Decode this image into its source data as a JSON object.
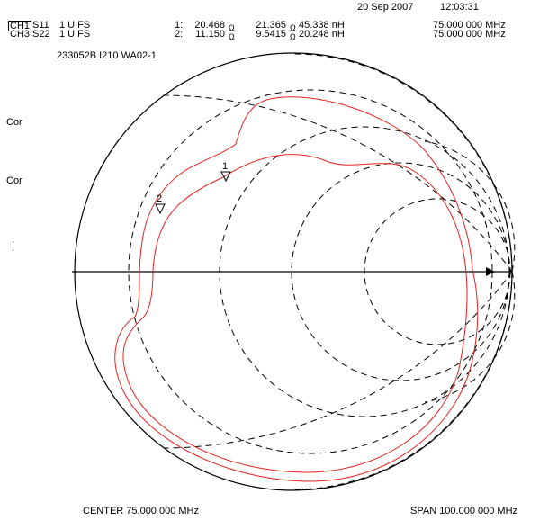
{
  "header": {
    "date": "20 Sep 2007",
    "time": "12:03:31",
    "channels": [
      {
        "channel": "CH1",
        "param": "S11",
        "scale": "1 U FS",
        "marker": "1:",
        "r": "20.468",
        "x": "21.365",
        "ohm": "Ω",
        "l": "45.338 nH",
        "freq": "75.000 000 MHz"
      },
      {
        "channel": "CH3",
        "param": "S22",
        "scale": "1 U FS",
        "marker": "2:",
        "r": "11.150",
        "x": "9.5415",
        "ohm": "Ω",
        "l": "20.248 nH",
        "freq": "75.000 000 MHz"
      }
    ],
    "label": "233052B I210 WA02-1"
  },
  "side": {
    "cor1": "Cor",
    "cor2": "Cor",
    "arrow": "↑\n↓"
  },
  "footer": {
    "center": "CENTER 75.000 000 MHz",
    "span": "SPAN 100.000 000 MHz"
  },
  "markers": {
    "m1": "1",
    "m2": "2"
  },
  "colors": {
    "trace": "#e32420",
    "grid": "#000000"
  },
  "chart_data": {
    "type": "smith",
    "impedance_circles_r": [
      0.2,
      0.5,
      1,
      2
    ],
    "reactance_arcs_x": [
      0.5,
      1,
      2
    ],
    "normalized_z0_ohm": 50,
    "markers": [
      {
        "id": "1",
        "trace": "S11",
        "freq_mhz": 75.0,
        "r_ohm": 20.468,
        "x_ohm": 21.365,
        "l_nh": 45.338
      },
      {
        "id": "2",
        "trace": "S22",
        "freq_mhz": 75.0,
        "r_ohm": 11.15,
        "x_ohm": 9.5415,
        "l_nh": 20.248
      }
    ],
    "center_mhz": 75.0,
    "span_mhz": 100.0
  }
}
